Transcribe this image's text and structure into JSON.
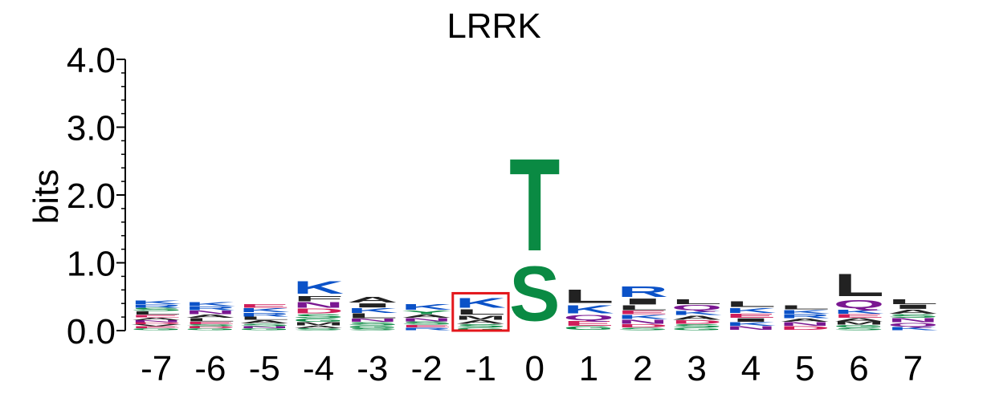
{
  "chart_data": {
    "type": "sequence-logo",
    "title": "LRRK",
    "ylabel": "bits",
    "ylim": [
      0,
      4
    ],
    "yticks": [
      "0.0",
      "1.0",
      "2.0",
      "3.0",
      "4.0"
    ],
    "positions": [
      "-7",
      "-6",
      "-5",
      "-4",
      "-3",
      "-2",
      "-1",
      "0",
      "1",
      "2",
      "3",
      "4",
      "5",
      "6",
      "7"
    ],
    "highlight_position": "-1",
    "highlight_color": "#e3161b",
    "colors": {
      "K": "#0b52c8",
      "R": "#0b52c8",
      "H": "#0b52c8",
      "D": "#cf1e5a",
      "E": "#cf1e5a",
      "N": "#7a1791",
      "Q": "#7a1791",
      "S": "#0a8a43",
      "T": "#0a8a43",
      "G": "#0a8a43",
      "Y": "#0a8a43",
      "C": "#0a8a43",
      "A": "#222222",
      "V": "#222222",
      "L": "#222222",
      "I": "#222222",
      "M": "#222222",
      "P": "#222222",
      "F": "#222222",
      "W": "#222222"
    },
    "stacks": [
      {
        "pos": "-7",
        "letters": [
          {
            "aa": "G",
            "h": 0.03
          },
          {
            "aa": "E",
            "h": 0.03
          },
          {
            "aa": "V",
            "h": 0.03
          },
          {
            "aa": "D",
            "h": 0.03
          },
          {
            "aa": "N",
            "h": 0.03
          },
          {
            "aa": "A",
            "h": 0.04
          },
          {
            "aa": "E",
            "h": 0.04
          },
          {
            "aa": "L",
            "h": 0.05
          },
          {
            "aa": "S",
            "h": 0.05
          },
          {
            "aa": "R",
            "h": 0.05
          },
          {
            "aa": "K",
            "h": 0.06
          }
        ]
      },
      {
        "pos": "-6",
        "letters": [
          {
            "aa": "G",
            "h": 0.03
          },
          {
            "aa": "D",
            "h": 0.03
          },
          {
            "aa": "S",
            "h": 0.03
          },
          {
            "aa": "E",
            "h": 0.04
          },
          {
            "aa": "L",
            "h": 0.05
          },
          {
            "aa": "A",
            "h": 0.05
          },
          {
            "aa": "N",
            "h": 0.06
          },
          {
            "aa": "R",
            "h": 0.06
          },
          {
            "aa": "K",
            "h": 0.07
          }
        ]
      },
      {
        "pos": "-5",
        "letters": [
          {
            "aa": "G",
            "h": 0.03
          },
          {
            "aa": "N",
            "h": 0.03
          },
          {
            "aa": "S",
            "h": 0.04
          },
          {
            "aa": "A",
            "h": 0.05
          },
          {
            "aa": "L",
            "h": 0.05
          },
          {
            "aa": "R",
            "h": 0.06
          },
          {
            "aa": "K",
            "h": 0.07
          },
          {
            "aa": "E",
            "h": 0.06
          }
        ]
      },
      {
        "pos": "-4",
        "letters": [
          {
            "aa": "S",
            "h": 0.03
          },
          {
            "aa": "A",
            "h": 0.04
          },
          {
            "aa": "M",
            "h": 0.05
          },
          {
            "aa": "G",
            "h": 0.05
          },
          {
            "aa": "S",
            "h": 0.07
          },
          {
            "aa": "D",
            "h": 0.08
          },
          {
            "aa": "N",
            "h": 0.1
          },
          {
            "aa": "F",
            "h": 0.09
          },
          {
            "aa": "K",
            "h": 0.21
          }
        ]
      },
      {
        "pos": "-3",
        "letters": [
          {
            "aa": "S",
            "h": 0.03
          },
          {
            "aa": "G",
            "h": 0.04
          },
          {
            "aa": "S",
            "h": 0.05
          },
          {
            "aa": "N",
            "h": 0.05
          },
          {
            "aa": "L",
            "h": 0.08
          },
          {
            "aa": "K",
            "h": 0.08
          },
          {
            "aa": "I",
            "h": 0.07
          },
          {
            "aa": "A",
            "h": 0.1
          }
        ]
      },
      {
        "pos": "-2",
        "letters": [
          {
            "aa": "R",
            "h": 0.04
          },
          {
            "aa": "E",
            "h": 0.04
          },
          {
            "aa": "S",
            "h": 0.05
          },
          {
            "aa": "N",
            "h": 0.05
          },
          {
            "aa": "A",
            "h": 0.05
          },
          {
            "aa": "Y",
            "h": 0.06
          },
          {
            "aa": "K",
            "h": 0.1
          }
        ]
      },
      {
        "pos": "-1",
        "letters": [
          {
            "aa": "G",
            "h": 0.04
          },
          {
            "aa": "S",
            "h": 0.05
          },
          {
            "aa": "A",
            "h": 0.06
          },
          {
            "aa": "M",
            "h": 0.07
          },
          {
            "aa": "L",
            "h": 0.09
          },
          {
            "aa": "K",
            "h": 0.17
          }
        ]
      },
      {
        "pos": "0",
        "letters": [
          {
            "aa": "S",
            "h": 0.93
          },
          {
            "aa": "T",
            "h": 1.57
          }
        ]
      },
      {
        "pos": "1",
        "letters": [
          {
            "aa": "G",
            "h": 0.06
          },
          {
            "aa": "E",
            "h": 0.08
          },
          {
            "aa": "Q",
            "h": 0.09
          },
          {
            "aa": "K",
            "h": 0.14
          },
          {
            "aa": "L",
            "h": 0.23
          }
        ]
      },
      {
        "pos": "2",
        "letters": [
          {
            "aa": "S",
            "h": 0.04
          },
          {
            "aa": "D",
            "h": 0.05
          },
          {
            "aa": "N",
            "h": 0.07
          },
          {
            "aa": "K",
            "h": 0.07
          },
          {
            "aa": "E",
            "h": 0.06
          },
          {
            "aa": "L",
            "h": 0.08
          },
          {
            "aa": "I",
            "h": 0.1
          },
          {
            "aa": "R",
            "h": 0.18
          }
        ]
      },
      {
        "pos": "3",
        "letters": [
          {
            "aa": "G",
            "h": 0.04
          },
          {
            "aa": "S",
            "h": 0.05
          },
          {
            "aa": "D",
            "h": 0.06
          },
          {
            "aa": "A",
            "h": 0.07
          },
          {
            "aa": "K",
            "h": 0.07
          },
          {
            "aa": "Q",
            "h": 0.09
          },
          {
            "aa": "L",
            "h": 0.08
          }
        ]
      },
      {
        "pos": "4",
        "letters": [
          {
            "aa": "N",
            "h": 0.06
          },
          {
            "aa": "K",
            "h": 0.06
          },
          {
            "aa": "I",
            "h": 0.06
          },
          {
            "aa": "E",
            "h": 0.07
          },
          {
            "aa": "K",
            "h": 0.08
          },
          {
            "aa": "L",
            "h": 0.1
          }
        ]
      },
      {
        "pos": "5",
        "letters": [
          {
            "aa": "D",
            "h": 0.06
          },
          {
            "aa": "N",
            "h": 0.06
          },
          {
            "aa": "A",
            "h": 0.05
          },
          {
            "aa": "R",
            "h": 0.07
          },
          {
            "aa": "K",
            "h": 0.06
          },
          {
            "aa": "L",
            "h": 0.07
          }
        ]
      },
      {
        "pos": "6",
        "letters": [
          {
            "aa": "S",
            "h": 0.04
          },
          {
            "aa": "G",
            "h": 0.04
          },
          {
            "aa": "M",
            "h": 0.05
          },
          {
            "aa": "A",
            "h": 0.05
          },
          {
            "aa": "E",
            "h": 0.06
          },
          {
            "aa": "K",
            "h": 0.07
          },
          {
            "aa": "Q",
            "h": 0.14
          },
          {
            "aa": "L",
            "h": 0.38
          }
        ]
      },
      {
        "pos": "7",
        "letters": [
          {
            "aa": "K",
            "h": 0.05
          },
          {
            "aa": "Q",
            "h": 0.06
          },
          {
            "aa": "N",
            "h": 0.07
          },
          {
            "aa": "S",
            "h": 0.06
          },
          {
            "aa": "A",
            "h": 0.07
          },
          {
            "aa": "I",
            "h": 0.07
          },
          {
            "aa": "L",
            "h": 0.08
          }
        ]
      }
    ]
  }
}
